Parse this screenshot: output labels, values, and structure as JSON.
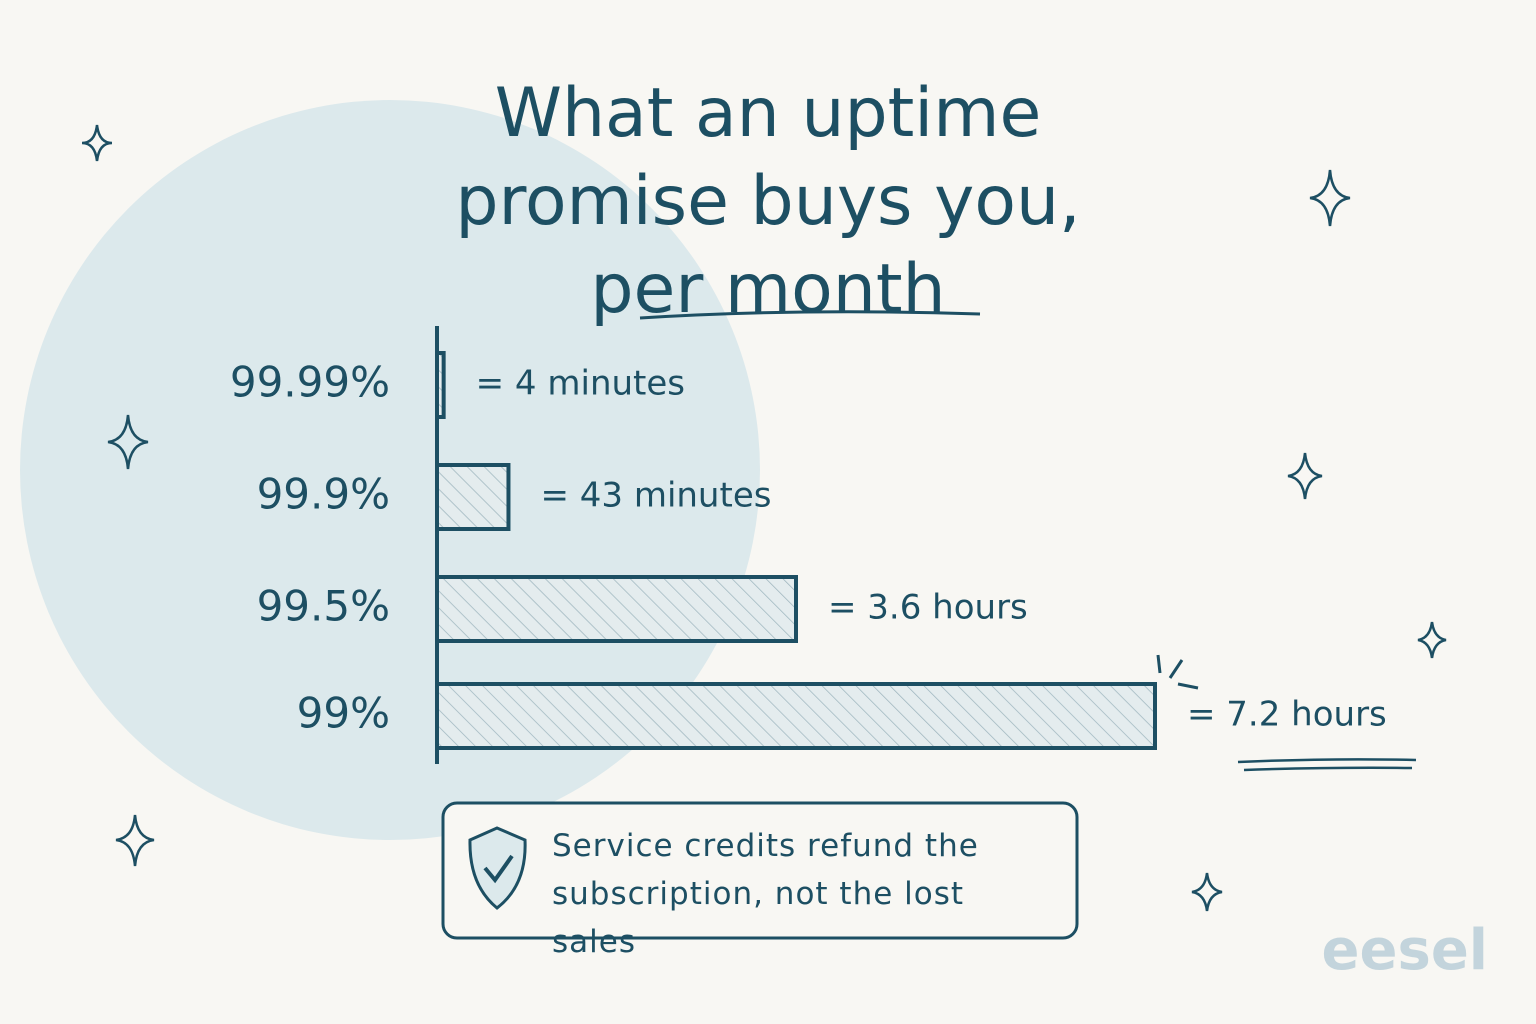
{
  "chart_data": {
    "type": "bar",
    "orientation": "horizontal",
    "title": "What an uptime promise buys you, per month",
    "categories": [
      "99.99%",
      "99.9%",
      "99.5%",
      "99%"
    ],
    "values": [
      4,
      43,
      216,
      432
    ],
    "value_labels": [
      "= 4 minutes",
      "= 43 minutes",
      "= 3.6 hours",
      "= 7.2 hours"
    ],
    "color": "#1d4f63",
    "note": "Service credits refund the subscription, not the lost sales",
    "logo": "eesel"
  }
}
